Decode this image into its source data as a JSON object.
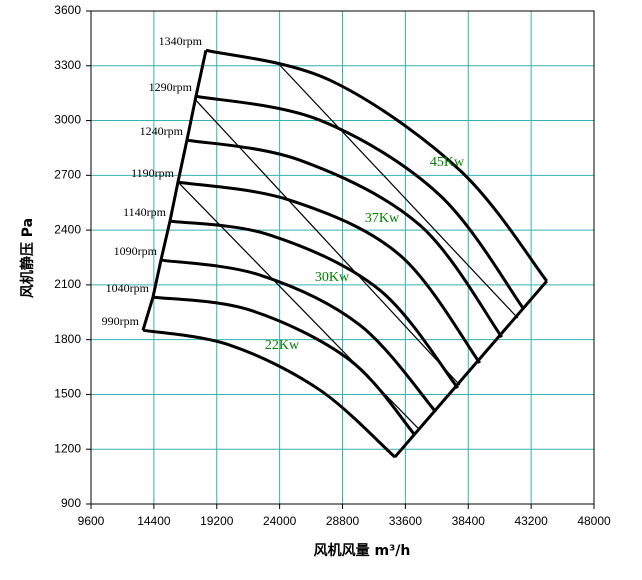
{
  "chart_data": {
    "type": "line",
    "xlabel": "风机风量  m³/h",
    "ylabel": "风机静压  Pa",
    "xlim": [
      9600,
      48000
    ],
    "xticks": [
      9600,
      14400,
      19200,
      24000,
      28800,
      33600,
      38400,
      43200,
      48000
    ],
    "ylim": [
      900,
      3600
    ],
    "yticks": [
      900,
      1200,
      1500,
      1800,
      2100,
      2400,
      2700,
      3000,
      3300,
      3600
    ],
    "grid": true,
    "grid_color": "#33b3b3",
    "color": "#000000",
    "series": [
      {
        "name": "990rpm",
        "x": [
          13568,
          20207,
          27075,
          32798
        ],
        "values": [
          1852,
          1770,
          1524,
          1157
        ]
      },
      {
        "name": "1040rpm",
        "x": [
          14331,
          21733,
          29364,
          34324
        ],
        "values": [
          2033,
          1962,
          1688,
          1278
        ]
      },
      {
        "name": "1090rpm",
        "x": [
          14942,
          22496,
          30127,
          35927
        ],
        "values": [
          2236,
          2154,
          1880,
          1404
        ]
      },
      {
        "name": "1140rpm",
        "x": [
          15628,
          23259,
          31654,
          37606
        ],
        "values": [
          2449,
          2373,
          2071,
          1535
        ]
      },
      {
        "name": "1190rpm",
        "x": [
          16239,
          24786,
          33180,
          39285
        ],
        "values": [
          2663,
          2564,
          2263,
          1672
        ]
      },
      {
        "name": "1240rpm",
        "x": [
          16926,
          25549,
          34706,
          40963
        ],
        "values": [
          2893,
          2783,
          2427,
          1814
        ]
      },
      {
        "name": "1290rpm",
        "x": [
          17613,
          27075,
          36232,
          42642
        ],
        "values": [
          3133,
          3002,
          2591,
          1967
        ]
      },
      {
        "name": "1340rpm",
        "x": [
          18376,
          27838,
          37758,
          44397
        ],
        "values": [
          3385,
          3221,
          2728,
          2121
        ]
      }
    ],
    "power_lines": [
      {
        "x": [
          16239,
          34706
        ],
        "values": [
          2663,
          1305
        ]
      },
      {
        "x": [
          17613,
          37758
        ],
        "values": [
          3111,
          1551
        ]
      },
      {
        "x": [
          24023,
          42184
        ],
        "values": [
          3303,
          1918
        ]
      }
    ],
    "power_labels": [
      "22Kw",
      "30Kw",
      "37Kw",
      "45Kw"
    ],
    "power_color": "#008000"
  }
}
